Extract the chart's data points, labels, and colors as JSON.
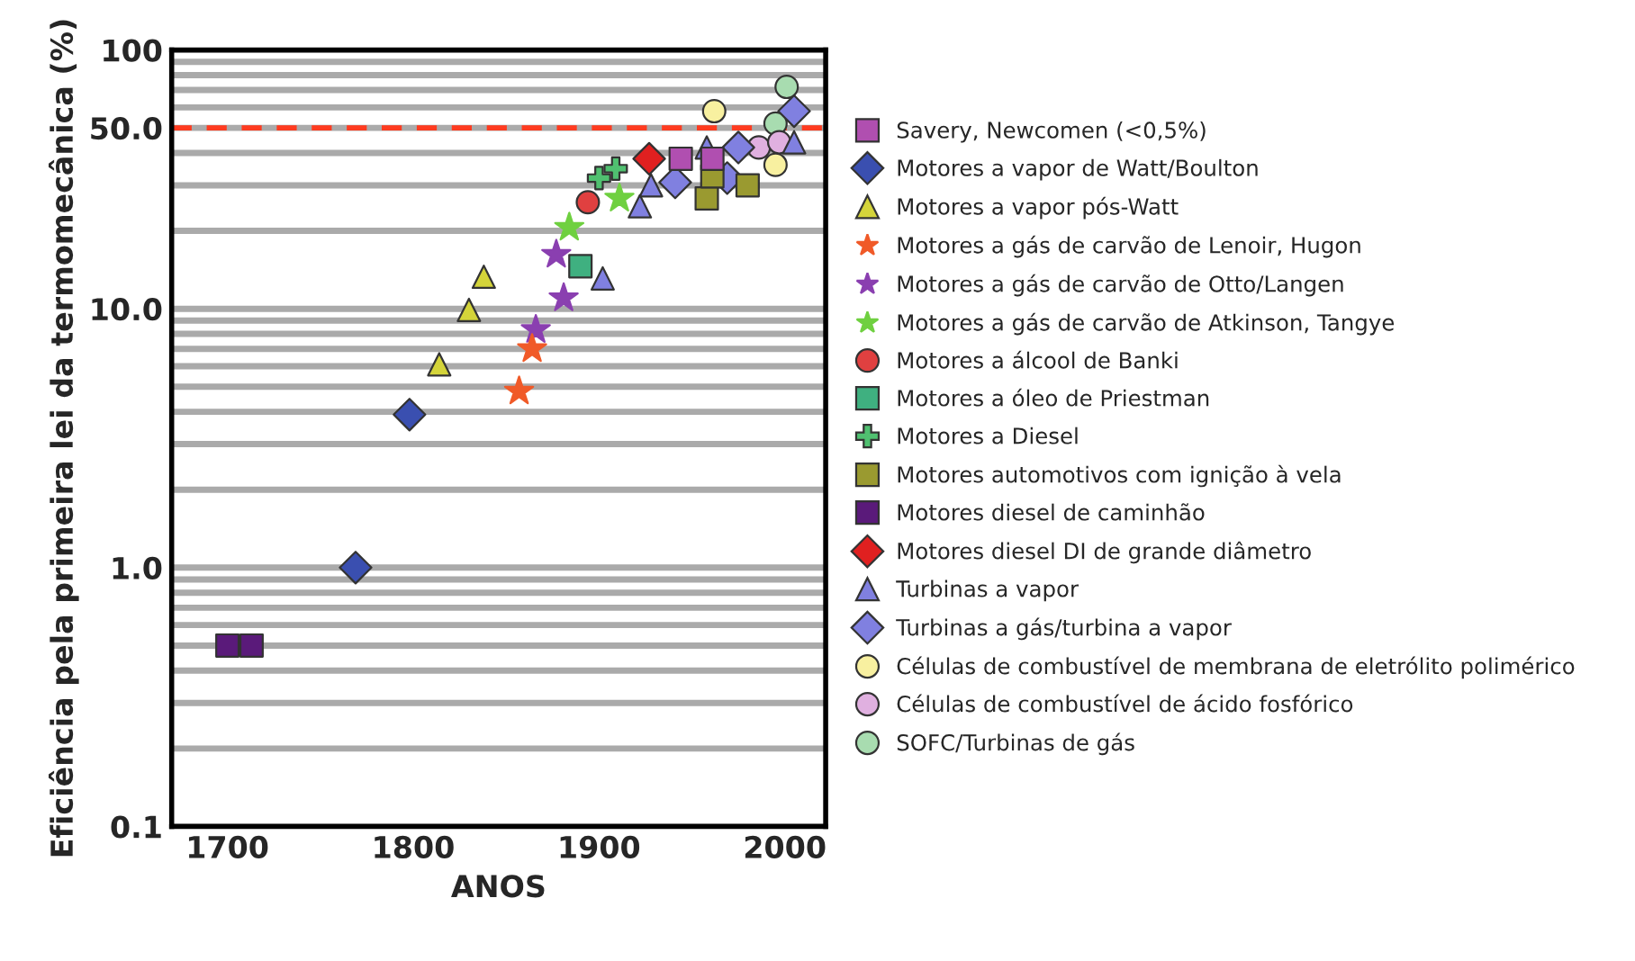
{
  "chart_data": {
    "type": "scatter",
    "xlabel": "ANOS",
    "ylabel": "Eficiência pela primeira lei da termomecânica (%)",
    "log": "y",
    "xlim": [
      1670,
      2022
    ],
    "xticks": [
      1700,
      1800,
      1900,
      2000
    ],
    "ylim": [
      0.1,
      100
    ],
    "yticks": [
      {
        "value": 0.1,
        "label": "0.1"
      },
      {
        "value": 0.2,
        "label": null
      },
      {
        "value": 0.3,
        "label": null
      },
      {
        "value": 0.4,
        "label": null
      },
      {
        "value": 0.5,
        "label": null
      },
      {
        "value": 0.6,
        "label": null
      },
      {
        "value": 0.7,
        "label": null
      },
      {
        "value": 0.8,
        "label": null
      },
      {
        "value": 0.9,
        "label": null
      },
      {
        "value": 1,
        "label": "1.0"
      },
      {
        "value": 2,
        "label": null
      },
      {
        "value": 3,
        "label": null
      },
      {
        "value": 4,
        "label": null
      },
      {
        "value": 5,
        "label": null
      },
      {
        "value": 6,
        "label": null
      },
      {
        "value": 7,
        "label": null
      },
      {
        "value": 8,
        "label": null
      },
      {
        "value": 9,
        "label": null
      },
      {
        "value": 10,
        "label": "10.0"
      },
      {
        "value": 20,
        "label": null
      },
      {
        "value": 30,
        "label": null
      },
      {
        "value": 40,
        "label": null
      },
      {
        "value": 50,
        "label": "50.0"
      },
      {
        "value": 60,
        "label": null
      },
      {
        "value": 70,
        "label": null
      },
      {
        "value": 80,
        "label": null
      },
      {
        "value": 90,
        "label": null
      },
      {
        "value": 100,
        "label": "100"
      }
    ],
    "grid": "y",
    "legend": "right",
    "ref_lines": [
      {
        "axis": "y",
        "value": 50,
        "color": "#ff3b1f",
        "line_style": "dashed"
      }
    ],
    "series": [
      {
        "name": "Savery, Newcomen (<0,5%)",
        "color": "#b04fb0",
        "marker": "square",
        "x": [
          1944,
          1961
        ],
        "values": [
          38,
          38
        ]
      },
      {
        "name": "Motores a vapor de Watt/Boulton",
        "color": "#3a4fb0",
        "marker": "diamond",
        "x": [
          1769,
          1798
        ],
        "values": [
          1.0,
          3.9
        ]
      },
      {
        "name": "Motores a vapor pós-Watt",
        "color": "#d4d43a",
        "marker": "triangle",
        "x": [
          1814,
          1830,
          1838
        ],
        "values": [
          6.1,
          9.9,
          13.3
        ]
      },
      {
        "name": "Motores a gás de carvão de Lenoir, Hugon",
        "color": "#f05a28",
        "marker": "star",
        "x": [
          1857,
          1864
        ],
        "values": [
          4.8,
          7.0
        ]
      },
      {
        "name": "Motores a gás de carvão de Otto/Langen",
        "color": "#8a3fb0",
        "marker": "star",
        "x": [
          1866,
          1877,
          1881
        ],
        "values": [
          8.3,
          16.2,
          11
        ]
      },
      {
        "name": "Motores a gás de carvão de Atkinson, Tangye",
        "color": "#6fd040",
        "marker": "star",
        "x": [
          1884,
          1911
        ],
        "values": [
          20.6,
          26.7
        ]
      },
      {
        "name": "Motores a álcool de Banki",
        "color": "#e04040",
        "marker": "circle",
        "x": [
          1894
        ],
        "values": [
          25.8
        ]
      },
      {
        "name": "Motores a óleo de Priestman",
        "color": "#3fb080",
        "marker": "square",
        "x": [
          1890
        ],
        "values": [
          14.6
        ]
      },
      {
        "name": "Motores a Diesel",
        "color": "#50c070",
        "marker": "cross",
        "x": [
          1900,
          1909
        ],
        "values": [
          32,
          34.8
        ]
      },
      {
        "name": "Motores automotivos com ignição à vela",
        "color": "#9a9a30",
        "marker": "square",
        "x": [
          1958,
          1961,
          1980
        ],
        "values": [
          26.7,
          32.5,
          30
        ]
      },
      {
        "name": "Motores diesel de caminhão",
        "color": "#5a1a7a",
        "marker": "square",
        "x": [
          1700,
          1713
        ],
        "values": [
          0.5,
          0.5
        ]
      },
      {
        "name": "Motores diesel DI de grande diâmetro",
        "color": "#e02020",
        "marker": "diamond",
        "x": [
          1927
        ],
        "values": [
          38
        ]
      },
      {
        "name": "Turbinas a vapor",
        "color": "#8080e0",
        "marker": "triangle",
        "x": [
          1902,
          1922,
          1928,
          1958,
          2005
        ],
        "values": [
          13.1,
          24.9,
          30,
          42,
          44
        ]
      },
      {
        "name": "Turbinas a gás/turbina a vapor",
        "color": "#8080e0",
        "marker": "diamond",
        "x": [
          1941,
          1969,
          1975,
          2005
        ],
        "values": [
          30.8,
          32,
          42,
          58
        ]
      },
      {
        "name": "Células de combustível de membrana de eletrólito polimérico",
        "color": "#f8f0a0",
        "marker": "circle",
        "x": [
          1962,
          1995
        ],
        "values": [
          58,
          36
        ]
      },
      {
        "name": "Células de combustível de ácido fosfórico",
        "color": "#e0b0e0",
        "marker": "circle",
        "x": [
          1986,
          1997
        ],
        "values": [
          42,
          44
        ]
      },
      {
        "name": "SOFC/Turbinas de gás",
        "color": "#a8dcb0",
        "marker": "circle",
        "x": [
          1995,
          2001
        ],
        "values": [
          52,
          72
        ]
      }
    ]
  }
}
